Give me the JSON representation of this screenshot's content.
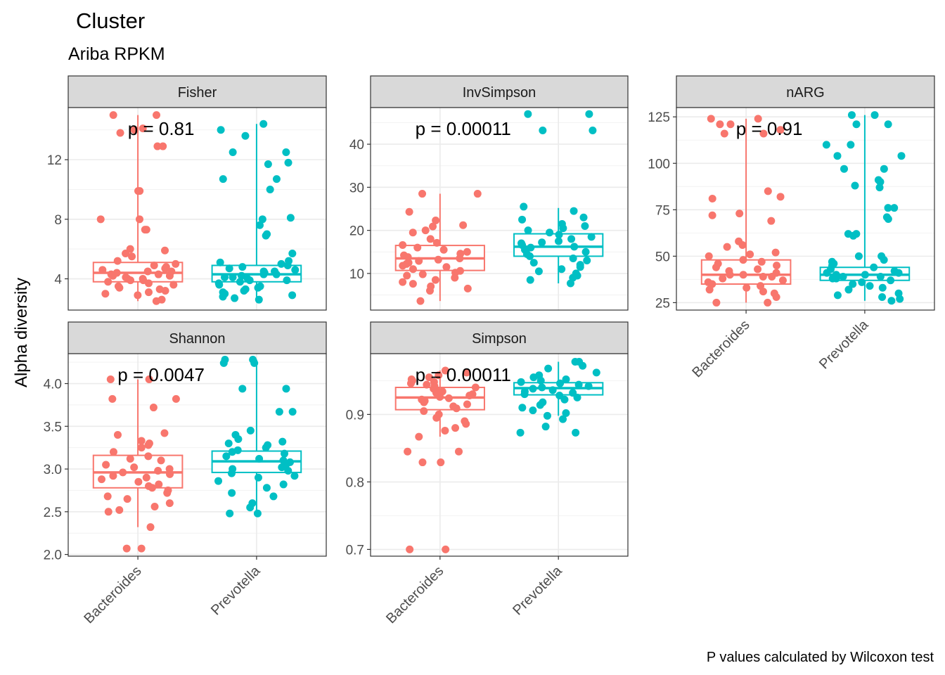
{
  "title": "Cluster",
  "subtitle": "Ariba RPKM",
  "ylabel": "Alpha diversity",
  "caption": "P values calculated by Wilcoxon test",
  "colors": {
    "Bacteroides": "#F8766D",
    "Prevotella": "#00BFC4",
    "strip": "#D9D9D9",
    "grid": "#EBEBEB"
  },
  "chart_data": [
    {
      "type": "box",
      "facet": "Fisher",
      "categories": [
        "Bacteroides",
        "Prevotella"
      ],
      "ylim": [
        1.9,
        15.5
      ],
      "yticks": [
        4,
        8,
        12
      ],
      "pvalue": "p = 0.81",
      "boxes": [
        {
          "name": "Bacteroides",
          "q1": 3.8,
          "median": 4.4,
          "q3": 5.1,
          "lower": 2.5,
          "upper": 15.0
        },
        {
          "name": "Prevotella",
          "q1": 3.8,
          "median": 4.3,
          "q3": 4.9,
          "lower": 2.6,
          "upper": 14.4
        }
      ],
      "points": [
        {
          "group": "Bacteroides",
          "values": [
            15.0,
            15.0,
            14.1,
            14.0,
            13.8,
            12.9,
            12.9,
            9.9,
            9.9,
            8.0,
            8.0,
            7.3,
            7.3,
            6.0,
            5.9,
            5.7,
            5.5,
            5.2,
            5.0,
            4.9,
            4.8,
            4.7,
            4.6,
            4.5,
            4.5,
            4.4,
            4.3,
            4.3,
            4.2,
            4.2,
            4.1,
            4.0,
            4.0,
            3.9,
            3.9,
            3.8,
            3.7,
            3.6,
            3.5,
            3.4,
            3.3,
            3.2,
            3.1,
            3.0,
            2.9,
            2.6,
            2.5
          ]
        },
        {
          "group": "Prevotella",
          "values": [
            14.4,
            14.0,
            13.6,
            12.5,
            12.5,
            11.8,
            11.7,
            10.7,
            10.7,
            10.0,
            8.1,
            8.0,
            7.6,
            7.0,
            6.9,
            5.7,
            5.2,
            5.1,
            5.0,
            4.9,
            4.8,
            4.7,
            4.6,
            4.5,
            4.5,
            4.4,
            4.3,
            4.3,
            4.2,
            4.1,
            4.1,
            4.0,
            3.9,
            3.9,
            3.8,
            3.7,
            3.6,
            3.5,
            3.4,
            3.3,
            3.2,
            3.1,
            3.0,
            2.9,
            2.8,
            2.7,
            2.6
          ]
        }
      ]
    },
    {
      "type": "box",
      "facet": "InvSimpson",
      "categories": [
        "Bacteroides",
        "Prevotella"
      ],
      "ylim": [
        1.5,
        48.5
      ],
      "yticks": [
        10,
        20,
        30,
        40
      ],
      "pvalue": "p = 0.00011",
      "boxes": [
        {
          "name": "Bacteroides",
          "q1": 10.7,
          "median": 13.5,
          "q3": 16.5,
          "lower": 3.6,
          "upper": 28.5
        },
        {
          "name": "Prevotella",
          "q1": 14.0,
          "median": 16.2,
          "q3": 19.2,
          "lower": 7.7,
          "upper": 25.2
        }
      ],
      "points": [
        {
          "group": "Bacteroides",
          "values": [
            28.5,
            28.5,
            24.3,
            22.3,
            21.2,
            20.9,
            20.0,
            19.5,
            18.0,
            17.1,
            16.6,
            16.0,
            15.5,
            15.0,
            14.6,
            14.2,
            13.8,
            13.5,
            13.2,
            12.9,
            12.5,
            12.2,
            11.8,
            11.5,
            11.0,
            10.6,
            10.2,
            9.8,
            9.5,
            9.0,
            8.5,
            8.0,
            7.6,
            7.0,
            6.5,
            6.0,
            3.6
          ]
        },
        {
          "group": "Prevotella",
          "values": [
            47.0,
            47.0,
            43.2,
            43.2,
            25.5,
            24.5,
            23.0,
            22.5,
            21.5,
            21.0,
            20.5,
            20.0,
            19.5,
            19.0,
            18.5,
            18.0,
            17.5,
            17.2,
            17.0,
            16.6,
            16.2,
            16.0,
            15.5,
            15.0,
            14.5,
            14.0,
            13.5,
            13.0,
            12.5,
            12.0,
            11.5,
            11.0,
            10.5,
            10.0,
            9.5,
            9.0,
            8.5,
            7.7
          ]
        }
      ]
    },
    {
      "type": "box",
      "facet": "nARG",
      "categories": [
        "Bacteroides",
        "Prevotella"
      ],
      "ylim": [
        21,
        130
      ],
      "yticks": [
        25,
        50,
        75,
        100,
        125
      ],
      "pvalue": "p = 0.91",
      "boxes": [
        {
          "name": "Bacteroides",
          "q1": 35,
          "median": 40,
          "q3": 48,
          "lower": 25,
          "upper": 124
        },
        {
          "name": "Prevotella",
          "q1": 37,
          "median": 40,
          "q3": 44,
          "lower": 26,
          "upper": 126
        }
      ],
      "points": [
        {
          "group": "Bacteroides",
          "values": [
            124,
            124,
            121,
            121,
            118,
            116,
            116,
            85,
            82,
            81,
            73,
            72,
            69,
            58,
            56,
            55,
            52,
            51,
            50,
            48,
            47,
            46,
            45,
            44,
            43,
            42,
            41,
            40,
            40,
            39,
            39,
            38,
            37,
            36,
            35,
            34,
            33,
            32,
            31,
            30,
            28,
            25,
            25
          ]
        },
        {
          "group": "Prevotella",
          "values": [
            126,
            126,
            121,
            121,
            110,
            110,
            104,
            104,
            97,
            97,
            91,
            90,
            88,
            87,
            76,
            76,
            71,
            70,
            62,
            62,
            61,
            50,
            50,
            48,
            47,
            46,
            45,
            44,
            43,
            42,
            41,
            41,
            40,
            40,
            39,
            39,
            38,
            38,
            37,
            36,
            35,
            34,
            33,
            32,
            30,
            29,
            28,
            27,
            26
          ]
        }
      ]
    },
    {
      "type": "box",
      "facet": "Shannon",
      "categories": [
        "Bacteroides",
        "Prevotella"
      ],
      "ylim": [
        1.98,
        4.35
      ],
      "yticks": [
        2.0,
        2.5,
        3.0,
        3.5,
        4.0
      ],
      "pvalue": "p = 0.0047",
      "boxes": [
        {
          "name": "Bacteroides",
          "q1": 2.78,
          "median": 2.96,
          "q3": 3.16,
          "lower": 2.32,
          "upper": 4.05
        },
        {
          "name": "Prevotella",
          "q1": 2.96,
          "median": 3.09,
          "q3": 3.21,
          "lower": 2.48,
          "upper": 4.28
        }
      ],
      "points": [
        {
          "group": "Bacteroides",
          "values": [
            4.05,
            4.05,
            3.82,
            3.82,
            3.72,
            3.42,
            3.4,
            3.33,
            3.3,
            3.28,
            3.25,
            3.2,
            3.15,
            3.12,
            3.1,
            3.05,
            3.02,
            3.0,
            2.98,
            2.96,
            2.94,
            2.92,
            2.9,
            2.88,
            2.85,
            2.82,
            2.8,
            2.78,
            2.75,
            2.72,
            2.68,
            2.65,
            2.6,
            2.56,
            2.52,
            2.5,
            2.32,
            2.07,
            2.07
          ]
        },
        {
          "group": "Prevotella",
          "values": [
            4.28,
            4.28,
            4.24,
            4.24,
            3.94,
            3.94,
            3.67,
            3.67,
            3.45,
            3.4,
            3.35,
            3.32,
            3.3,
            3.28,
            3.25,
            3.22,
            3.2,
            3.18,
            3.15,
            3.12,
            3.1,
            3.08,
            3.05,
            3.02,
            3.0,
            2.98,
            2.95,
            2.92,
            2.9,
            2.86,
            2.82,
            2.78,
            2.72,
            2.68,
            2.6,
            2.55,
            2.48,
            2.48
          ]
        }
      ]
    },
    {
      "type": "box",
      "facet": "Simpson",
      "categories": [
        "Bacteroides",
        "Prevotella"
      ],
      "ylim": [
        0.69,
        0.99
      ],
      "yticks": [
        0.7,
        0.8,
        0.9
      ],
      "pvalue": "p = 0.00011",
      "boxes": [
        {
          "name": "Bacteroides",
          "q1": 0.907,
          "median": 0.925,
          "q3": 0.94,
          "lower": 0.867,
          "upper": 0.965
        },
        {
          "name": "Prevotella",
          "q1": 0.929,
          "median": 0.939,
          "q3": 0.947,
          "lower": 0.898,
          "upper": 0.978
        }
      ],
      "points": [
        {
          "group": "Bacteroides",
          "values": [
            0.965,
            0.962,
            0.958,
            0.955,
            0.952,
            0.95,
            0.948,
            0.946,
            0.944,
            0.942,
            0.94,
            0.938,
            0.936,
            0.934,
            0.932,
            0.93,
            0.928,
            0.926,
            0.924,
            0.922,
            0.92,
            0.918,
            0.915,
            0.912,
            0.909,
            0.905,
            0.9,
            0.895,
            0.89,
            0.886,
            0.88,
            0.876,
            0.867,
            0.845,
            0.845,
            0.829,
            0.829,
            0.7,
            0.7
          ]
        },
        {
          "group": "Prevotella",
          "values": [
            0.978,
            0.978,
            0.972,
            0.968,
            0.962,
            0.958,
            0.955,
            0.952,
            0.95,
            0.948,
            0.946,
            0.944,
            0.942,
            0.94,
            0.938,
            0.936,
            0.934,
            0.932,
            0.93,
            0.928,
            0.925,
            0.922,
            0.918,
            0.914,
            0.91,
            0.906,
            0.902,
            0.898,
            0.893,
            0.882,
            0.873,
            0.873
          ]
        }
      ]
    }
  ]
}
